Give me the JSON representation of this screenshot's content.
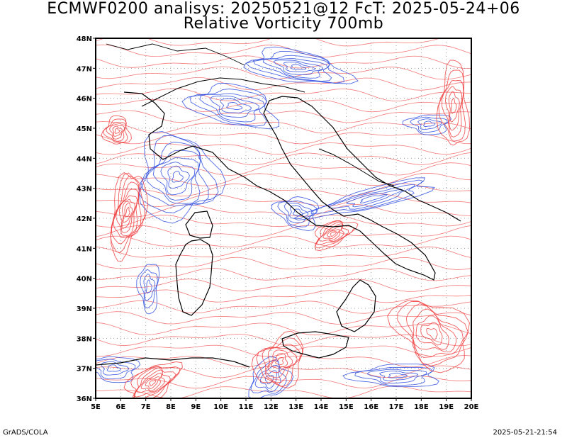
{
  "title_line1": "ECMWF0200 analisys: 20250521@12 FcT: 2025-05-24+06",
  "title_line2": "Relative Vorticity 700mb",
  "footer_left": "GrADS/COLA",
  "footer_right": "2025-05-21-21:54",
  "axes": {
    "lon_labels": [
      "5E",
      "6E",
      "7E",
      "8E",
      "9E",
      "10E",
      "11E",
      "12E",
      "13E",
      "14E",
      "15E",
      "16E",
      "17E",
      "18E",
      "19E",
      "20E"
    ],
    "lat_labels": [
      "48N",
      "47N",
      "46N",
      "45N",
      "44N",
      "43N",
      "42N",
      "41N",
      "40N",
      "39N",
      "38N",
      "37N",
      "36N"
    ]
  },
  "colors": {
    "positive_contour": "#f04040",
    "negative_contour": "#3050e0",
    "coastline": "#000000",
    "grid": "#888888"
  }
}
